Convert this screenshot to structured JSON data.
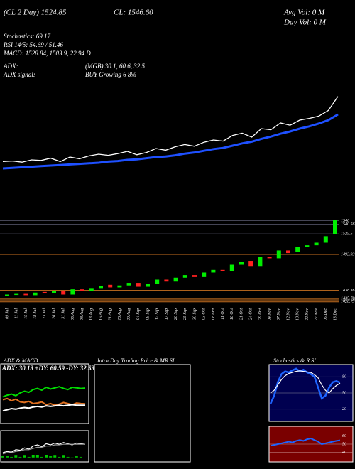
{
  "chart_data": [
    {
      "type": "line",
      "annotations": [
        "(CL 2 Day) 1524.85",
        "CL: 1546.60",
        "Avg Vol: 0 M",
        "Day Vol: 0 M",
        "Stochastics: 69.17",
        "RSI 14/5: 54.69 / 51.46",
        "MACD: 1528.84, 1503.9, 22.94 D",
        "ADX:",
        "(MGB) 30.1, 60.6, 32.5",
        "ADX signal:",
        "BUY Growing 6 8%"
      ],
      "ylim": [
        1410,
        1560
      ],
      "series": [
        {
          "color": "#ffffff",
          "values": [
            1432,
            1433,
            1431,
            1435,
            1434,
            1438,
            1432,
            1440,
            1437,
            1442,
            1445,
            1443,
            1446,
            1450,
            1444,
            1448,
            1455,
            1452,
            1458,
            1462,
            1459,
            1466,
            1470,
            1468,
            1478,
            1482,
            1475,
            1490,
            1488,
            1500,
            1496,
            1505,
            1508,
            1512,
            1522,
            1546.6
          ]
        },
        {
          "color": "#1e50ff",
          "values": [
            1420,
            1421,
            1422,
            1423,
            1424,
            1425,
            1426,
            1427,
            1428,
            1429,
            1430,
            1432,
            1433,
            1435,
            1436,
            1438,
            1440,
            1441,
            1443,
            1446,
            1448,
            1451,
            1454,
            1456,
            1460,
            1464,
            1467,
            1472,
            1476,
            1481,
            1485,
            1490,
            1494,
            1499,
            1505,
            1515
          ]
        }
      ]
    },
    {
      "type": "candlestick",
      "categories": [
        "09 Jul",
        "11 Jul",
        "15 Jul",
        "18 Jul",
        "23 Jul",
        "26 Jul",
        "31 Jul",
        "05 Aug",
        "08 Aug",
        "13 Aug",
        "16 Aug",
        "21 Aug",
        "26 Aug",
        "29 Aug",
        "04 Sep",
        "09 Sep",
        "12 Sep",
        "17 Sep",
        "20 Sep",
        "25 Sep",
        "30 Sep",
        "03 Oct",
        "08 Oct",
        "11 Oct",
        "16 Oct",
        "21 Oct",
        "24 Oct",
        "29 Oct",
        "04 Nov",
        "07 Nov",
        "12 Nov",
        "18 Nov",
        "22 Nov",
        "27 Nov",
        "05 Dec",
        "13 Dec"
      ],
      "open": [
        1430,
        1432,
        1433,
        1431,
        1436,
        1434,
        1438,
        1432,
        1440,
        1437,
        1442,
        1447,
        1443,
        1446,
        1450,
        1444,
        1448,
        1455,
        1452,
        1458,
        1462,
        1459,
        1466,
        1470,
        1468,
        1478,
        1484,
        1475,
        1490,
        1488,
        1500,
        1498,
        1505,
        1508,
        1512,
        1525
      ],
      "close": [
        1432,
        1433,
        1431,
        1435,
        1434,
        1438,
        1432,
        1440,
        1437,
        1442,
        1445,
        1443,
        1446,
        1450,
        1444,
        1448,
        1455,
        1452,
        1458,
        1462,
        1459,
        1466,
        1470,
        1468,
        1478,
        1482,
        1475,
        1490,
        1488,
        1500,
        1496,
        1505,
        1508,
        1512,
        1522,
        1546.6
      ],
      "up_color": "#00ee00",
      "down_color": "#ff2020",
      "ylim": [
        1415,
        1552
      ],
      "yticks": [
        1546,
        1540.56,
        1525.5,
        1493.93,
        1438.36,
        1425.79,
        1423.79,
        1420.73
      ]
    },
    {
      "type": "adx",
      "title": "ADX  & MACD",
      "annotation": "ADX: 30.13 +DY: 60.59 -DY: 32.53",
      "ylim": [
        0,
        100
      ],
      "series": [
        {
          "color": "#00dd00",
          "values": [
            45,
            48,
            50,
            47,
            52,
            55,
            53,
            58,
            60,
            57,
            62,
            59,
            61,
            63,
            60,
            58,
            62,
            61,
            60,
            60.59
          ]
        },
        {
          "color": "#e07020",
          "values": [
            40,
            42,
            38,
            41,
            36,
            35,
            37,
            33,
            34,
            36,
            31,
            33,
            30,
            32,
            35,
            33,
            31,
            34,
            33,
            32.53
          ]
        },
        {
          "color": "#ffffff",
          "values": [
            20,
            22,
            24,
            23,
            25,
            26,
            25,
            27,
            28,
            27,
            29,
            28,
            29,
            30,
            29,
            30,
            31,
            30,
            30,
            30.13
          ]
        }
      ]
    },
    {
      "type": "macd",
      "ylim": [
        -5,
        40
      ],
      "bar_color": "#00cc00",
      "bars": [
        2,
        2,
        1,
        3,
        1,
        3,
        1,
        4,
        4,
        1,
        4,
        2,
        3,
        1,
        3,
        1,
        -1,
        2,
        1,
        0
      ],
      "series": [
        {
          "color": "#ffffff",
          "values": [
            8,
            10,
            9,
            13,
            12,
            16,
            14,
            19,
            21,
            18,
            23,
            21,
            24,
            22,
            25,
            23,
            21,
            24,
            23,
            22
          ]
        },
        {
          "color": "#999999",
          "values": [
            6,
            8,
            8,
            10,
            11,
            13,
            13,
            15,
            17,
            17,
            19,
            19,
            21,
            21,
            22,
            22,
            22,
            22,
            22,
            22
          ]
        }
      ]
    },
    {
      "type": "empty",
      "title": "Intra Day Trading Price  & MR           SI"
    },
    {
      "type": "stochastics",
      "title": "Stochastics & R           SI",
      "ylim": [
        0,
        100
      ],
      "yticks": [
        20,
        50,
        80
      ],
      "series": [
        {
          "color": "#1e64ff",
          "values": [
            30,
            45,
            70,
            85,
            90,
            88,
            92,
            95,
            90,
            93,
            88,
            85,
            80,
            60,
            40,
            45,
            60,
            70,
            72,
            69.17
          ]
        },
        {
          "color": "#ffffff",
          "values": [
            50,
            55,
            65,
            75,
            82,
            86,
            88,
            90,
            91,
            90,
            89,
            88,
            84,
            78,
            65,
            55,
            50,
            58,
            64,
            68
          ]
        }
      ]
    },
    {
      "type": "rsi",
      "ylim": [
        30,
        70
      ],
      "yticks": [
        40,
        50,
        60
      ],
      "series": [
        {
          "color": "#1e64ff",
          "values": [
            48,
            49,
            50,
            51,
            52,
            53,
            52,
            54,
            55,
            54,
            56,
            57,
            55,
            53,
            50,
            51,
            52,
            53,
            54,
            54.69
          ]
        }
      ]
    }
  ]
}
